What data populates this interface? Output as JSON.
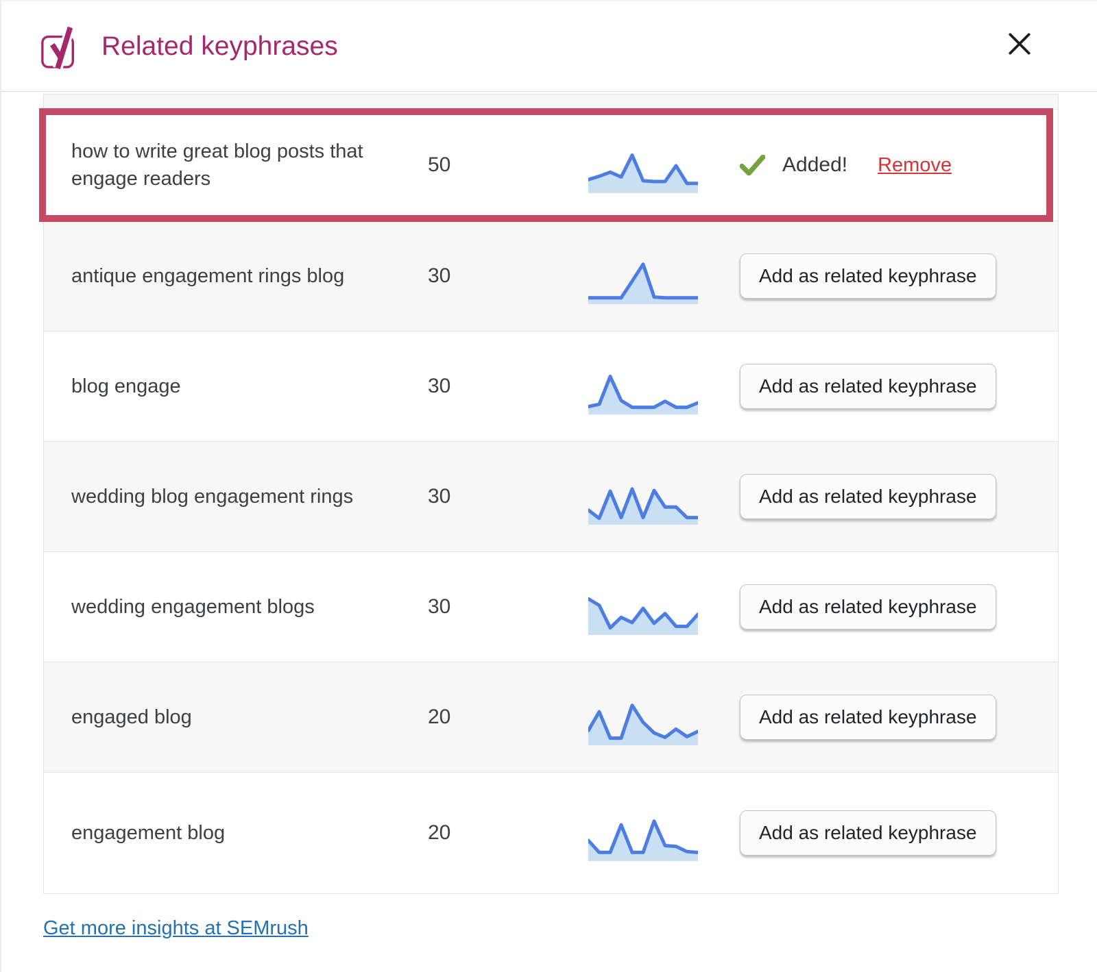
{
  "modal": {
    "title": "Related keyphrases",
    "close_label": "Close"
  },
  "table": {
    "rows": [
      {
        "keyphrase": "how to write great blog posts that engage readers",
        "volume": "50",
        "trend": [
          25,
          34,
          45,
          32,
          90,
          22,
          20,
          20,
          62,
          15,
          15
        ],
        "status": "added",
        "added_label": "Added!",
        "remove_label": "Remove"
      },
      {
        "keyphrase": "antique engagement rings blog",
        "volume": "30",
        "trend": [
          6,
          6,
          6,
          6,
          50,
          95,
          8,
          6,
          6,
          6,
          6
        ],
        "status": "addable",
        "button_label": "Add as related keyphrase"
      },
      {
        "keyphrase": "blog engage",
        "volume": "30",
        "trend": [
          10,
          16,
          90,
          26,
          8,
          8,
          8,
          24,
          8,
          8,
          20
        ],
        "status": "addable",
        "button_label": "Add as related keyphrase"
      },
      {
        "keyphrase": "wedding blog engagement rings",
        "volume": "30",
        "trend": [
          28,
          6,
          78,
          8,
          84,
          8,
          80,
          36,
          36,
          8,
          8
        ],
        "status": "addable",
        "button_label": "Add as related keyphrase"
      },
      {
        "keyphrase": "wedding engagement blogs",
        "volume": "30",
        "trend": [
          85,
          68,
          8,
          36,
          22,
          60,
          20,
          46,
          12,
          12,
          44
        ],
        "status": "addable",
        "button_label": "Add as related keyphrase"
      },
      {
        "keyphrase": "engaged blog",
        "volume": "20",
        "trend": [
          28,
          78,
          8,
          8,
          95,
          50,
          22,
          10,
          32,
          12,
          26
        ],
        "status": "addable",
        "button_label": "Add as related keyphrase"
      },
      {
        "keyphrase": "engagement blog",
        "volume": "20",
        "trend": [
          44,
          12,
          12,
          85,
          12,
          12,
          95,
          30,
          28,
          14,
          12
        ],
        "status": "addable",
        "button_label": "Add as related keyphrase"
      }
    ]
  },
  "footer": {
    "link_label": "Get more insights at SEMrush"
  },
  "icons": {
    "logo": "yoast-y-icon",
    "close": "close-icon",
    "added_check": "check-icon"
  },
  "colors": {
    "brand": "#a4286a",
    "highlight_border": "#c54a63",
    "remove_link": "#d63434",
    "footer_link": "#2271b1",
    "check_green": "#72a33e",
    "sparkline_stroke": "#4d7de2",
    "sparkline_fill": "#c9e0f4",
    "row_alt_background": "#f7f7f7"
  }
}
